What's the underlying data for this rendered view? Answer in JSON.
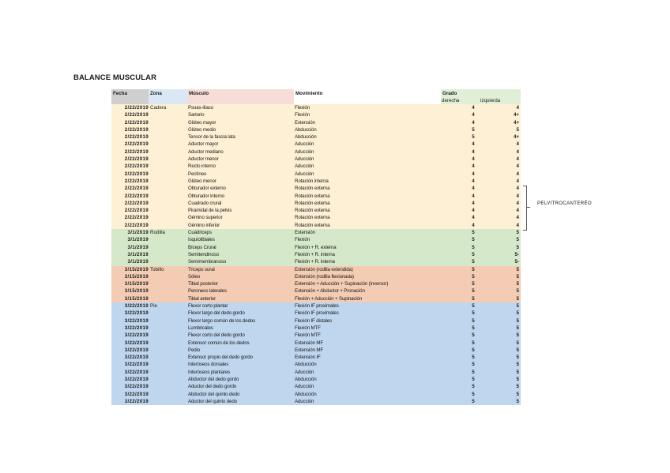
{
  "title": "BALANCE MUSCULAR",
  "headers": {
    "fecha": "Fecha",
    "zona": "Zona",
    "musculo": "Músculo",
    "movimiento": "Movimiento",
    "grado": "Grado",
    "derecha": "derecha",
    "izquierda": "izquierda"
  },
  "rows": [
    {
      "fecha": "2/22/2019",
      "zona": "Cadera",
      "musculo": "Psoas-ilíaco",
      "movimiento": "Flexión",
      "derecha": "4",
      "izquierda": "4",
      "group": "cadera"
    },
    {
      "fecha": "2/22/2019",
      "zona": "",
      "musculo": "Sartorio",
      "movimiento": "Flexión",
      "derecha": "4",
      "izquierda": "4+",
      "group": "cadera"
    },
    {
      "fecha": "2/22/2019",
      "zona": "",
      "musculo": "Glúteo mayor",
      "movimiento": "Extensión",
      "derecha": "4",
      "izquierda": "4+",
      "group": "cadera"
    },
    {
      "fecha": "2/22/2019",
      "zona": "",
      "musculo": "Glúteo medio",
      "movimiento": "Abducción",
      "derecha": "5",
      "izquierda": "5",
      "group": "cadera"
    },
    {
      "fecha": "2/22/2019",
      "zona": "",
      "musculo": "Tensor de la fascia lata",
      "movimiento": "Abducción",
      "derecha": "5",
      "izquierda": "4+",
      "group": "cadera"
    },
    {
      "fecha": "2/22/2019",
      "zona": "",
      "musculo": "Aductor mayor",
      "movimiento": "Aducción",
      "derecha": "4",
      "izquierda": "4",
      "group": "cadera"
    },
    {
      "fecha": "2/22/2019",
      "zona": "",
      "musculo": "Aductor mediano",
      "movimiento": "Aducción",
      "derecha": "4",
      "izquierda": "4",
      "group": "cadera"
    },
    {
      "fecha": "2/22/2019",
      "zona": "",
      "musculo": "Aductor menor",
      "movimiento": "Aducción",
      "derecha": "4",
      "izquierda": "4",
      "group": "cadera"
    },
    {
      "fecha": "2/22/2019",
      "zona": "",
      "musculo": "Recto interno",
      "movimiento": "Aducción",
      "derecha": "4",
      "izquierda": "4",
      "group": "cadera"
    },
    {
      "fecha": "2/22/2019",
      "zona": "",
      "musculo": "Pectíneo",
      "movimiento": "Aducción",
      "derecha": "4",
      "izquierda": "4",
      "group": "cadera"
    },
    {
      "fecha": "2/22/2019",
      "zona": "",
      "musculo": "Glúteo menor",
      "movimiento": "Rotación interna",
      "derecha": "4",
      "izquierda": "4",
      "group": "cadera"
    },
    {
      "fecha": "2/22/2019",
      "zona": "",
      "musculo": "Obturador externo",
      "movimiento": "Rotación externa",
      "derecha": "4",
      "izquierda": "4",
      "group": "cadera"
    },
    {
      "fecha": "2/22/2019",
      "zona": "",
      "musculo": "Obturador interno",
      "movimiento": "Rotación externa",
      "derecha": "4",
      "izquierda": "4",
      "group": "cadera"
    },
    {
      "fecha": "2/22/2019",
      "zona": "",
      "musculo": "Cuadrado crural",
      "movimiento": "Rotación externa",
      "derecha": "4",
      "izquierda": "4",
      "group": "cadera"
    },
    {
      "fecha": "2/22/2019",
      "zona": "",
      "musculo": "Piramidal de la pelvis",
      "movimiento": "Rotación externa",
      "derecha": "4",
      "izquierda": "4",
      "group": "cadera"
    },
    {
      "fecha": "2/22/2019",
      "zona": "",
      "musculo": "Géminо superior",
      "movimiento": "Rotación externa",
      "derecha": "4",
      "izquierda": "4",
      "group": "cadera"
    },
    {
      "fecha": "2/22/2019",
      "zona": "",
      "musculo": "Gémino inferior",
      "movimiento": "Rotación externa",
      "derecha": "4",
      "izquierda": "4",
      "group": "cadera"
    },
    {
      "fecha": "3/1/2019",
      "zona": "Rodilla",
      "musculo": "Cuádriceps",
      "movimiento": "Extensión",
      "derecha": "5",
      "izquierda": "5",
      "group": "rodilla"
    },
    {
      "fecha": "3/1/2019",
      "zona": "",
      "musculo": "Isquiotibiales",
      "movimiento": "Flexión",
      "derecha": "5",
      "izquierda": "5",
      "group": "rodilla"
    },
    {
      "fecha": "3/1/2019",
      "zona": "",
      "musculo": "Bíceps Crural",
      "movimiento": "Flexión + R. externa",
      "derecha": "5",
      "izquierda": "5",
      "group": "rodilla"
    },
    {
      "fecha": "3/1/2019",
      "zona": "",
      "musculo": "Semitendinoso",
      "movimiento": "Flexión + R. interna",
      "derecha": "5",
      "izquierda": "5-",
      "group": "rodilla"
    },
    {
      "fecha": "3/1/2019",
      "zona": "",
      "musculo": "Semimembranoso",
      "movimiento": "Flexión + R. interna",
      "derecha": "5",
      "izquierda": "5-",
      "group": "rodilla"
    },
    {
      "fecha": "3/15/2019",
      "zona": "Tobillo",
      "musculo": "Tríceps sural",
      "movimiento": "Extensión (rodilla extendida)",
      "derecha": "5",
      "izquierda": "5",
      "group": "tobillo"
    },
    {
      "fecha": "3/15/2019",
      "zona": "",
      "musculo": "Sóleo",
      "movimiento": "Extensión (rodilla flexionada)",
      "derecha": "5",
      "izquierda": "5",
      "group": "tobillo"
    },
    {
      "fecha": "3/15/2019",
      "zona": "",
      "musculo": "Tibial posterior",
      "movimiento": "Extensión + Aducción + Supinación (inversor)",
      "derecha": "5",
      "izquierda": "5",
      "group": "tobillo"
    },
    {
      "fecha": "3/15/2019",
      "zona": "",
      "musculo": "Peroneos laterales",
      "movimiento": "Extensión + Abductor + Pronación",
      "derecha": "5",
      "izquierda": "5",
      "group": "tobillo"
    },
    {
      "fecha": "3/15/2019",
      "zona": "",
      "musculo": "Tibial anterior",
      "movimiento": "Flexión + Aducción + Supinación",
      "derecha": "5",
      "izquierda": "5",
      "group": "tobillo"
    },
    {
      "fecha": "3/22/2019",
      "zona": "Pie",
      "musculo": "Flexor corto plantar",
      "movimiento": "Flexión IF proximales",
      "derecha": "5",
      "izquierda": "5",
      "group": "pie"
    },
    {
      "fecha": "3/22/2019",
      "zona": "",
      "musculo": "Flexor largo del dedo gordo",
      "movimiento": "Flexión IF proximales",
      "derecha": "5",
      "izquierda": "5",
      "group": "pie"
    },
    {
      "fecha": "3/22/2019",
      "zona": "",
      "musculo": "Flexor largo común de los dedos",
      "movimiento": "Flexión IF distales",
      "derecha": "5",
      "izquierda": "5",
      "group": "pie"
    },
    {
      "fecha": "3/22/2019",
      "zona": "",
      "musculo": "Lumbricales",
      "movimiento": "Flexión MTF",
      "derecha": "5",
      "izquierda": "5",
      "group": "pie"
    },
    {
      "fecha": "3/22/2019",
      "zona": "",
      "musculo": "Flexor corto del dedo gordo",
      "movimiento": "Flexión MTF",
      "derecha": "5",
      "izquierda": "5",
      "group": "pie"
    },
    {
      "fecha": "3/22/2019",
      "zona": "",
      "musculo": "Extensor común de los dedos",
      "movimiento": "Extensión MF",
      "derecha": "5",
      "izquierda": "5",
      "group": "pie"
    },
    {
      "fecha": "3/22/2019",
      "zona": "",
      "musculo": "Pedio",
      "movimiento": "Extensión MF",
      "derecha": "5",
      "izquierda": "5",
      "group": "pie"
    },
    {
      "fecha": "3/22/2019",
      "zona": "",
      "musculo": "Extensor propio del dedo gordo",
      "movimiento": "Extensión IF",
      "derecha": "5",
      "izquierda": "5",
      "group": "pie"
    },
    {
      "fecha": "3/22/2019",
      "zona": "",
      "musculo": "Interóseos dorsales",
      "movimiento": "Abducción",
      "derecha": "5",
      "izquierda": "5",
      "group": "pie"
    },
    {
      "fecha": "3/22/2019",
      "zona": "",
      "musculo": "Interóseos plantares",
      "movimiento": "Aducción",
      "derecha": "5",
      "izquierda": "5",
      "group": "pie"
    },
    {
      "fecha": "3/22/2019",
      "zona": "",
      "musculo": "Abductor del dedo gordo",
      "movimiento": "Abducción",
      "derecha": "5",
      "izquierda": "5",
      "group": "pie"
    },
    {
      "fecha": "3/22/2019",
      "zona": "",
      "musculo": "Aductor del dedo gordo",
      "movimiento": "Aducción",
      "derecha": "5",
      "izquierda": "5",
      "group": "pie"
    },
    {
      "fecha": "3/22/2019",
      "zona": "",
      "musculo": "Abductor del quinto dedo",
      "movimiento": "Abducción",
      "derecha": "5",
      "izquierda": "5",
      "group": "pie"
    },
    {
      "fecha": "3/22/2019",
      "zona": "",
      "musculo": "Aductor del quinto dedo",
      "movimiento": "Aducción",
      "derecha": "5",
      "izquierda": "5",
      "group": "pie"
    }
  ],
  "side_label": "PELVITROCANTERÉO",
  "colors": {
    "cadera": "#fdf0d4",
    "rodilla": "#d5e8c9",
    "tobillo": "#f4ccb3",
    "pie": "#bed6ee"
  }
}
